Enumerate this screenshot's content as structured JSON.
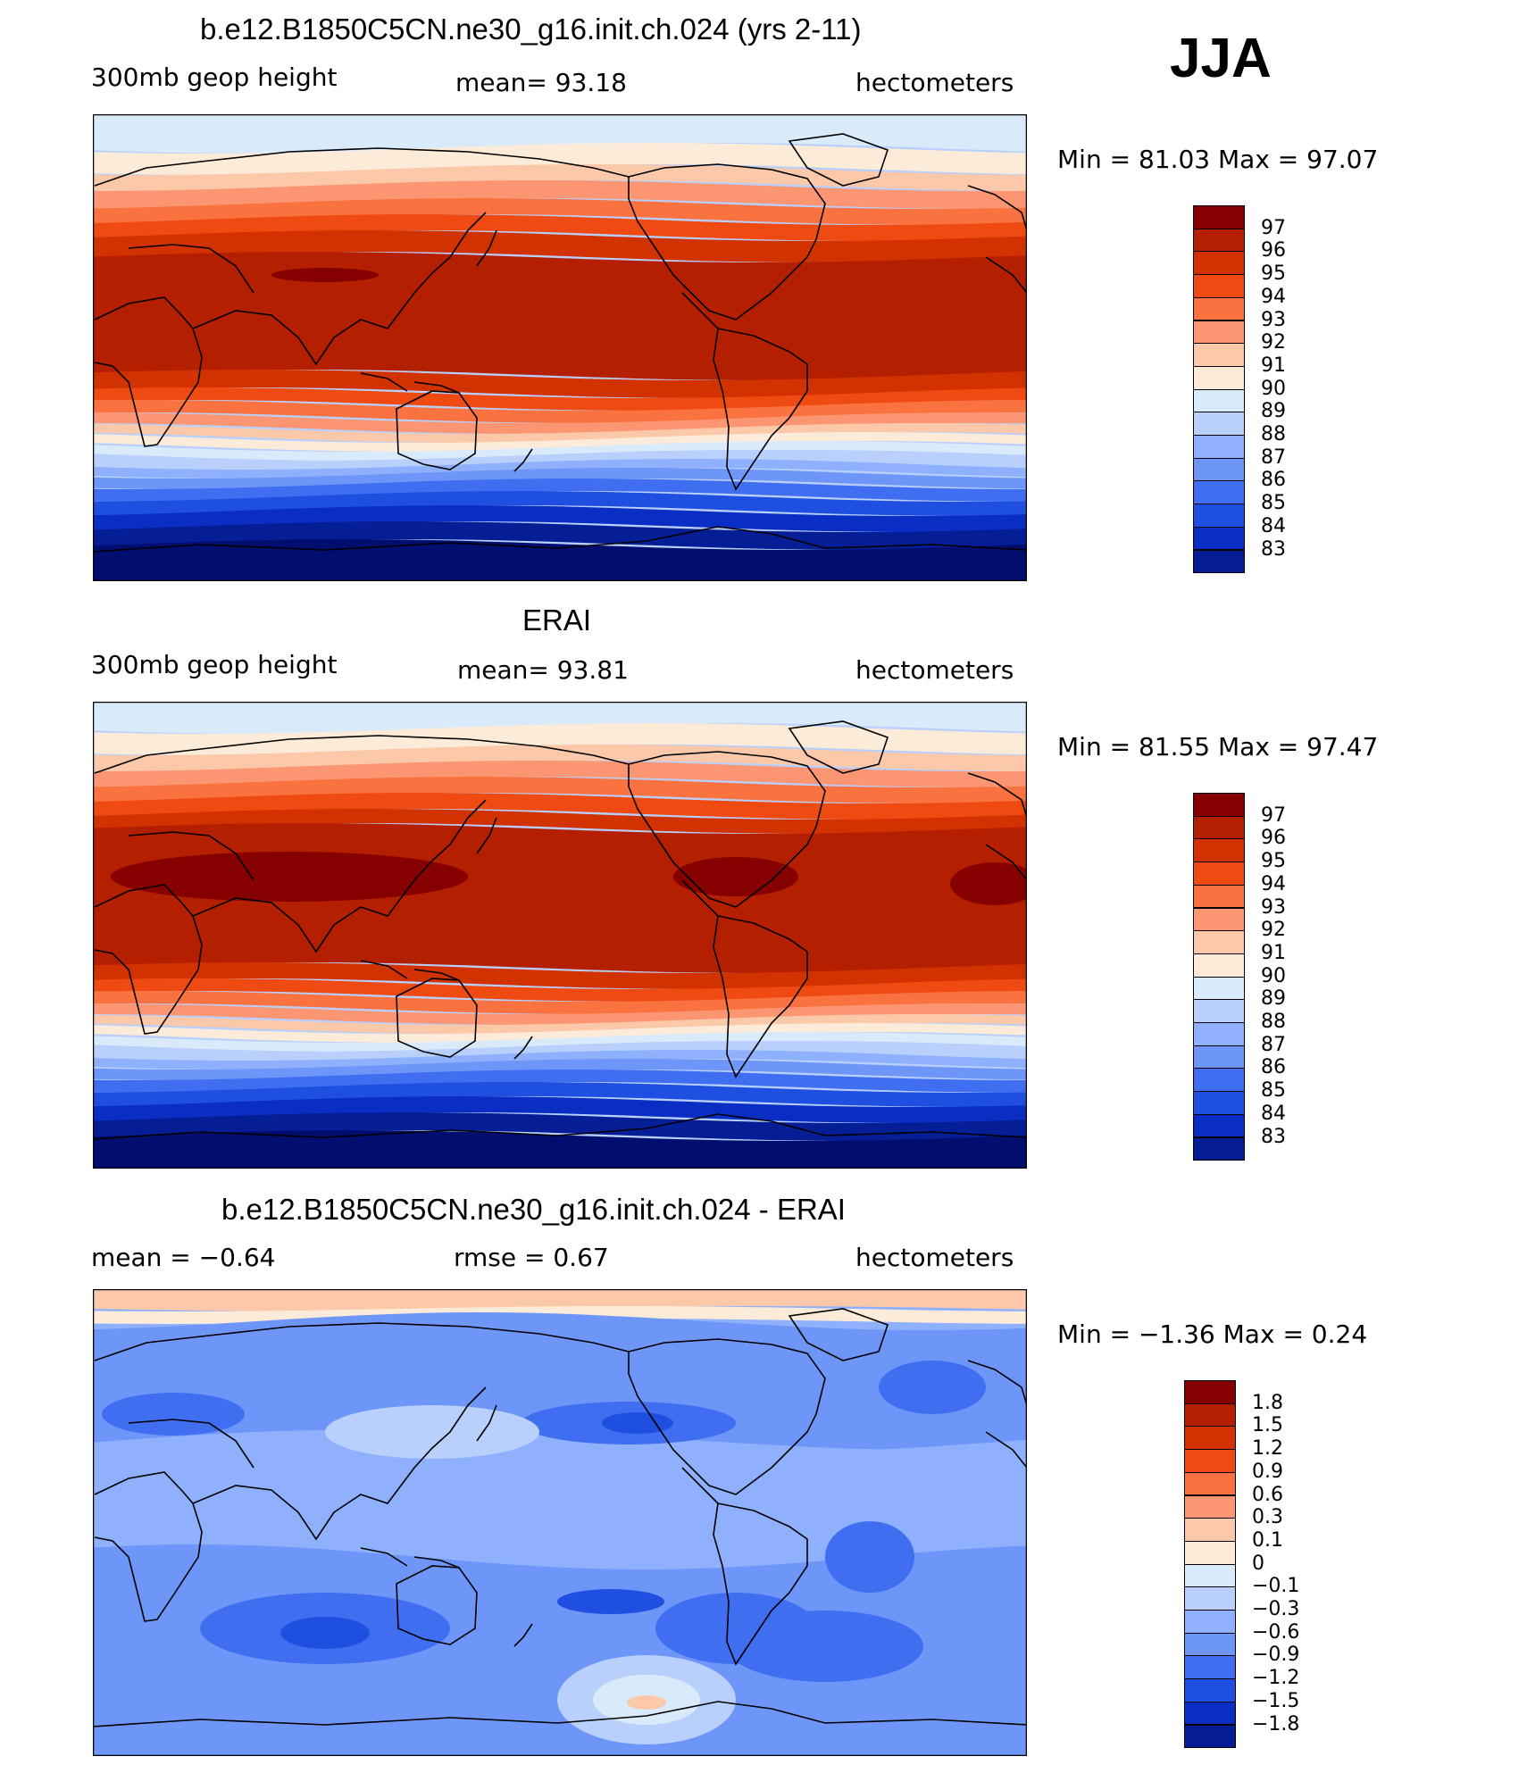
{
  "season": "JJA",
  "panels": [
    {
      "title": "b.e12.B1850C5CN.ne30_g16.init.ch.024 (yrs 2-11)",
      "left_label": "300mb  geop  height",
      "center_label": "mean=   93.18",
      "units": "hectometers",
      "minmax": "Min  =    81.03  Max  =     97.07",
      "colorbar_labels": [
        "97",
        "96",
        "95",
        "94",
        "93",
        "92",
        "91",
        "90",
        "89",
        "88",
        "87",
        "86",
        "85",
        "84",
        "83"
      ],
      "min": 81.03,
      "max": 97.07
    },
    {
      "title": "ERAI",
      "left_label": "300mb  geop  height",
      "center_label": "mean=   93.81",
      "units": "hectometers",
      "minmax": "Min  =    81.55  Max  =     97.47",
      "colorbar_labels": [
        "97",
        "96",
        "95",
        "94",
        "93",
        "92",
        "91",
        "90",
        "89",
        "88",
        "87",
        "86",
        "85",
        "84",
        "83"
      ],
      "min": 81.55,
      "max": 97.47
    },
    {
      "title": "b.e12.B1850C5CN.ne30_g16.init.ch.024 - ERAI",
      "left_label": "mean  =    −0.64",
      "center_label": "rmse  =      0.67",
      "units": "hectometers",
      "minmax": "Min  =    −1.36  Max  =      0.24",
      "colorbar_labels": [
        "1.8",
        "1.5",
        "1.2",
        "0.9",
        "0.6",
        "0.3",
        "0.1",
        "0",
        "−0.1",
        "−0.3",
        "−0.6",
        "−0.9",
        "−1.2",
        "−1.5",
        "−1.8"
      ],
      "min": -1.36,
      "max": 0.24
    }
  ],
  "colors": {
    "scale": [
      "#870000",
      "#b41f00",
      "#d23200",
      "#ee4a12",
      "#fa7240",
      "#fc9672",
      "#fbc8aa",
      "#fdebd9",
      "#d9eafb",
      "#b8d0fb",
      "#8fb1fd",
      "#6e95f8",
      "#3f6ef0",
      "#1f4fe0",
      "#0a2ec4",
      "#061e95",
      "#020d70"
    ],
    "land": "#000000"
  }
}
